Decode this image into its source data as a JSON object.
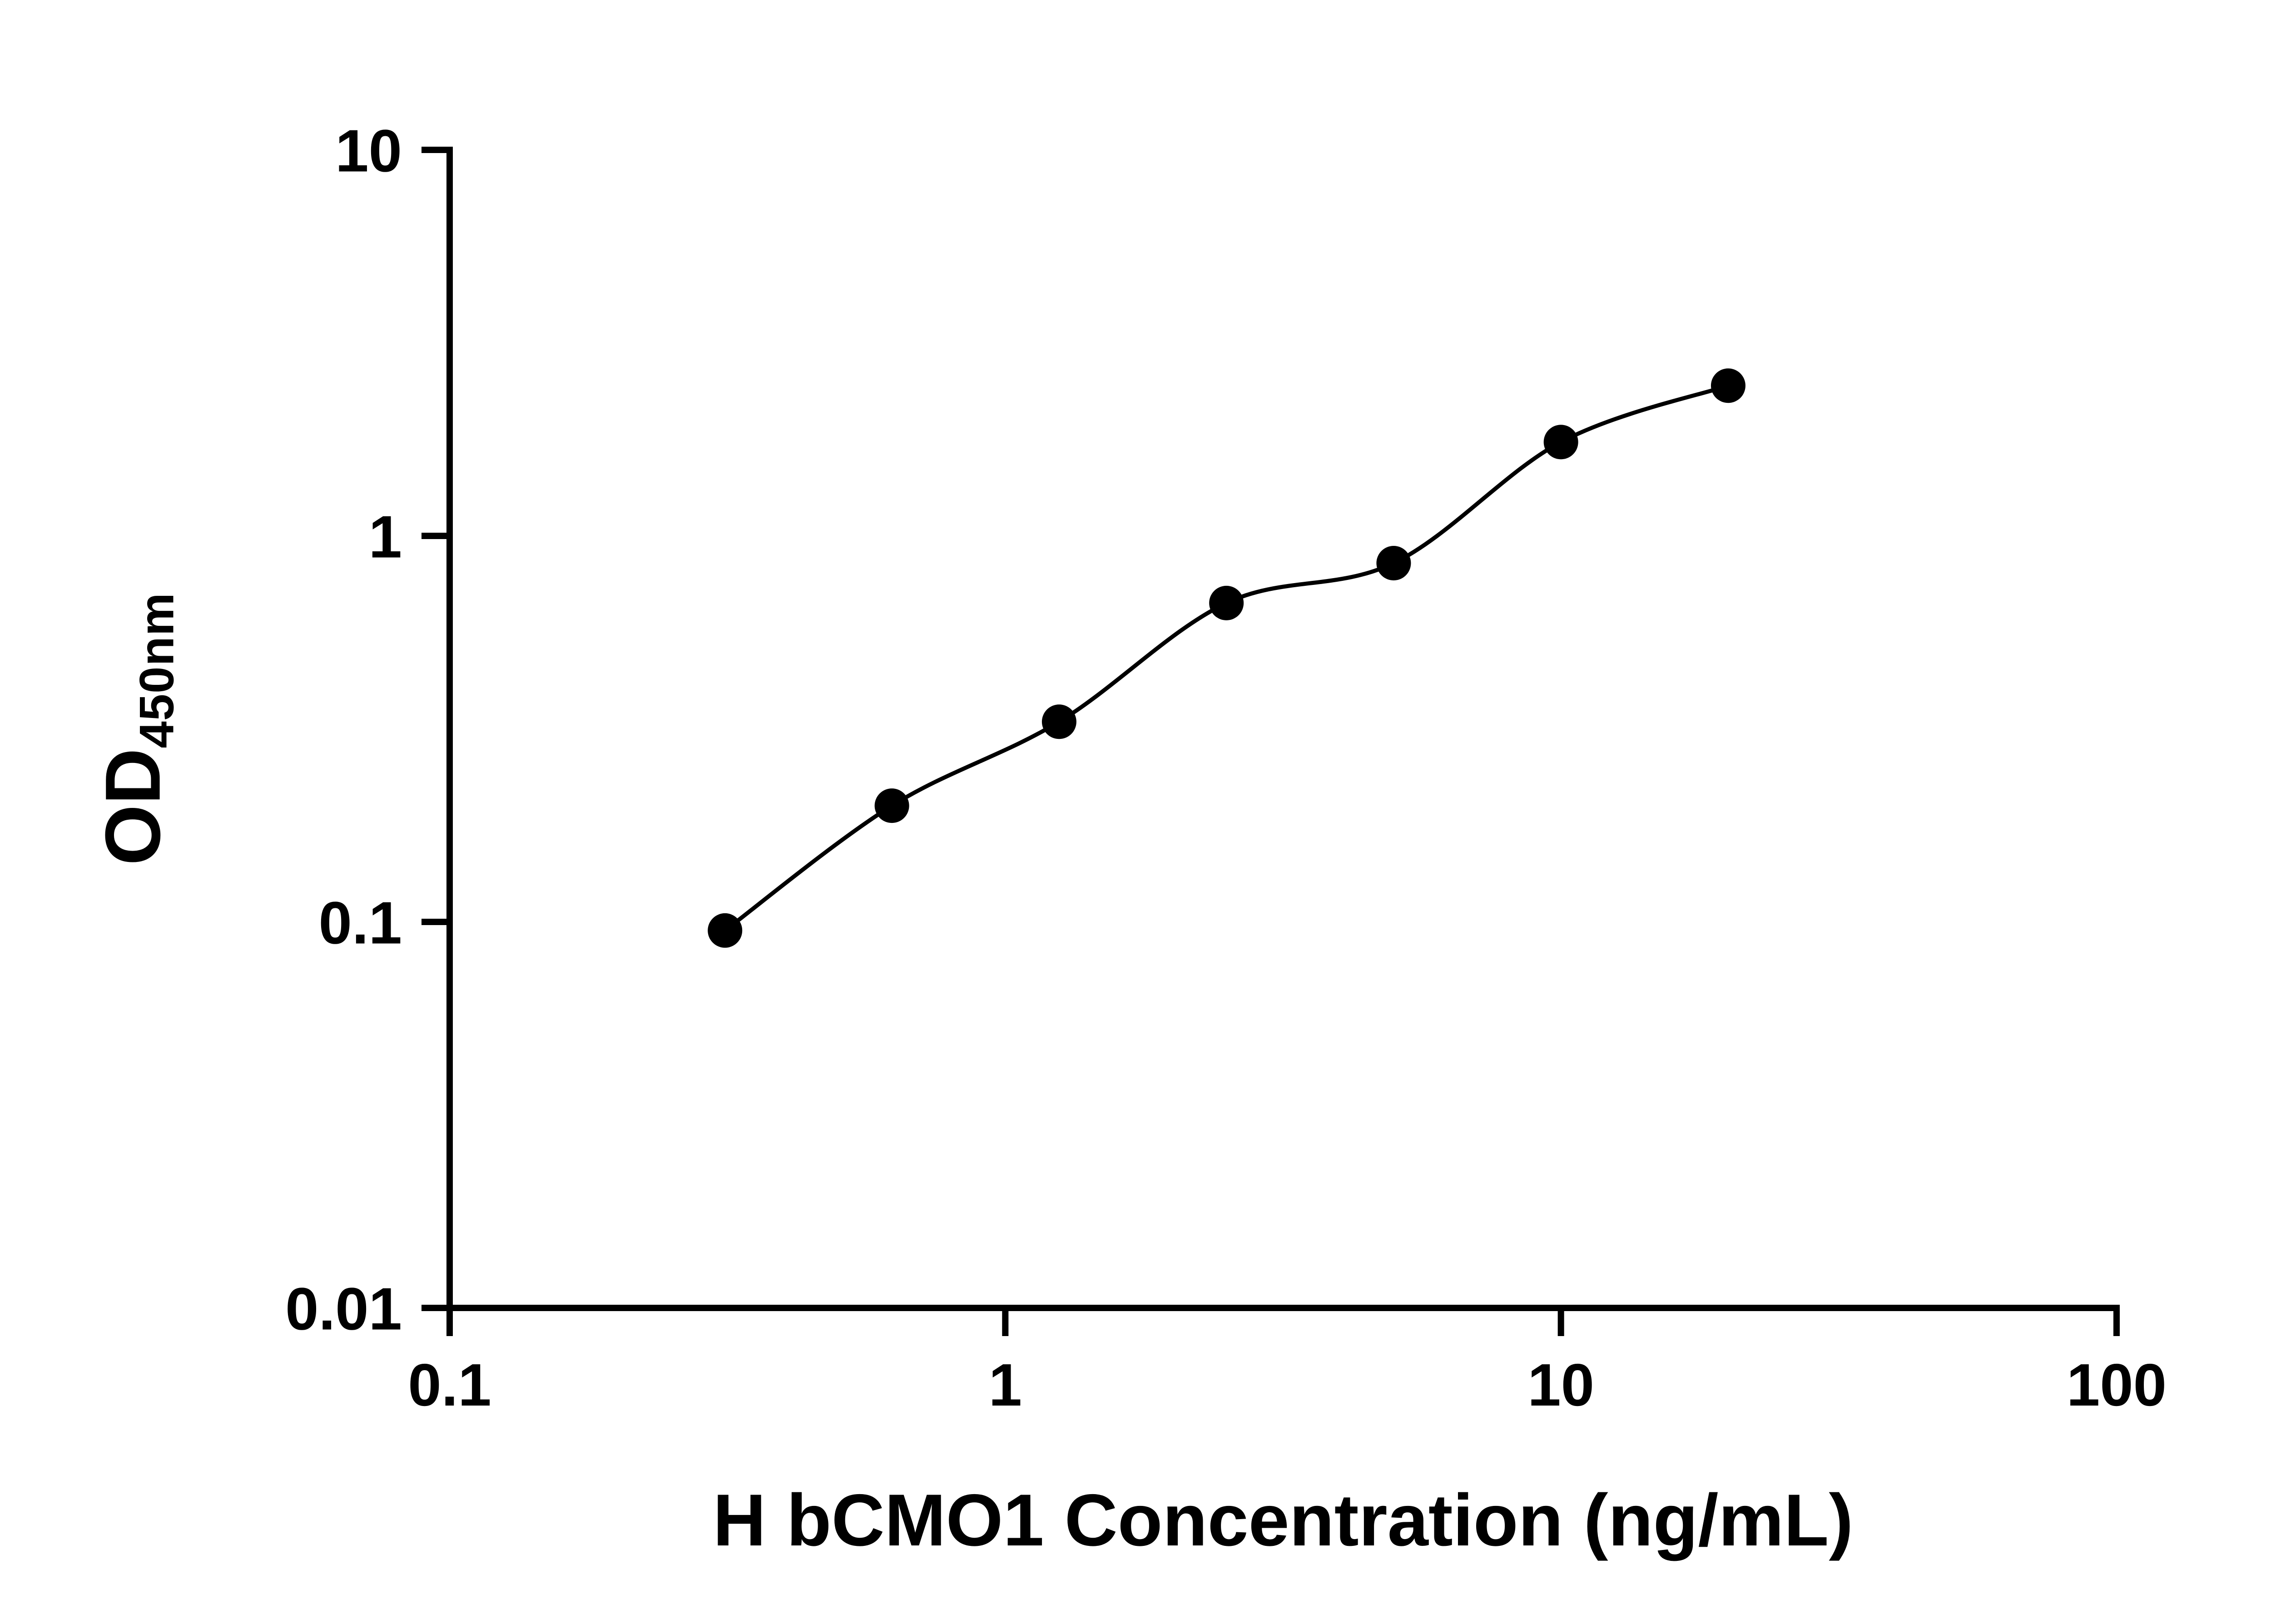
{
  "chart": {
    "y_title_main": "OD",
    "y_title_sub": "450nm"
  },
  "chart_data": {
    "type": "scatter",
    "title": "",
    "xlabel": "H bCMO1 Concentration (ng/mL)",
    "ylabel": "OD450nm",
    "x_scale": "log10",
    "y_scale": "log10",
    "xlim": [
      0.1,
      100
    ],
    "ylim": [
      0.01,
      10
    ],
    "x_ticks": [
      0.1,
      1,
      10,
      100
    ],
    "x_tick_labels": [
      "0.1",
      "1",
      "10",
      "100"
    ],
    "y_ticks": [
      0.01,
      0.1,
      1,
      10
    ],
    "y_tick_labels": [
      "0.01",
      "0.1",
      "1",
      "10"
    ],
    "grid": false,
    "legend": false,
    "series": [
      {
        "marker": "filled-circle",
        "marker_color": "#000000",
        "line_color": "#000000",
        "fit_line": true,
        "x": [
          0.313,
          0.625,
          1.25,
          2.5,
          5,
          10,
          20
        ],
        "y": [
          0.095,
          0.2,
          0.33,
          0.67,
          0.85,
          1.75,
          2.45
        ]
      }
    ]
  }
}
